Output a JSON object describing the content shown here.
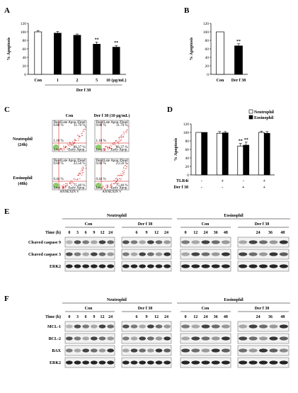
{
  "panels": {
    "a": {
      "letter": "A",
      "chart_data": {
        "type": "bar",
        "ylabel": "% Apoptosis",
        "ylim": [
          0,
          120
        ],
        "yticks": [
          0,
          20,
          40,
          60,
          80,
          100,
          120
        ],
        "categories": [
          "Con",
          "1",
          "2",
          "5",
          "10 (µg/mL)"
        ],
        "values": [
          100,
          97,
          92,
          71,
          64
        ],
        "errors": [
          3,
          4,
          3,
          5,
          4
        ],
        "fills": [
          "#ffffff",
          "#000000",
          "#000000",
          "#000000",
          "#000000"
        ],
        "annotations": [
          "",
          "",
          "",
          "**",
          "**"
        ],
        "group_label": "Der f 38"
      }
    },
    "b": {
      "letter": "B",
      "chart_data": {
        "type": "bar",
        "ylabel": "% Apoptosis",
        "ylim": [
          0,
          120
        ],
        "yticks": [
          0,
          20,
          40,
          60,
          80,
          100,
          120
        ],
        "categories": [
          "Con",
          "Der f 38"
        ],
        "values": [
          100,
          67
        ],
        "errors": [
          0,
          5
        ],
        "fills": [
          "#ffffff",
          "#000000"
        ],
        "annotations": [
          "",
          "**"
        ]
      }
    },
    "c": {
      "letter": "C",
      "col_labels": [
        "Con",
        "Der f 38 (10 µg/mL)"
      ],
      "rows": [
        {
          "label": "Neutrophil",
          "sublabel": "(24h)",
          "quad_pcts": [
            [
              "0.80 %",
              "11.70 %"
            ],
            [
              "1.10 %",
              "86.37 %"
            ]
          ]
        },
        {
          "label": "Eosinophil",
          "sublabel": "(48h)",
          "quad_pcts": [
            [
              "0.60 %",
              "23.56 %"
            ],
            [
              "0.44 %",
              "75.40 %"
            ]
          ]
        }
      ],
      "quad_labels": {
        "tl": "Dead",
        "tr": "Late Apop./Dead",
        "bl": "Live",
        "br": "Early Apop."
      },
      "xlabel": "ANNEXIN V",
      "ylabel": "7-AAD"
    },
    "d": {
      "letter": "D",
      "chart_data": {
        "type": "bar",
        "ylabel": "% Apoptosis",
        "ylim": [
          0,
          120
        ],
        "yticks": [
          0,
          20,
          40,
          60,
          80,
          100,
          120
        ],
        "series": [
          {
            "name": "Neutrophil",
            "values": [
              100,
              98,
              68,
              100
            ],
            "errors": [
              0,
              4,
              6,
              3
            ],
            "fill": "#ffffff"
          },
          {
            "name": "Eosinophil",
            "values": [
              100,
              99,
              70,
              98
            ],
            "errors": [
              0,
              3,
              7,
              4
            ],
            "fill": "#000000"
          }
        ],
        "annotations": [
          "",
          "",
          "**",
          ""
        ],
        "condition_rows": [
          {
            "label": "TLR4i",
            "values": [
              "-",
              "+",
              "-",
              "+"
            ]
          },
          {
            "label": "Der f 38",
            "values": [
              "-",
              "-",
              "+",
              "+"
            ]
          }
        ],
        "legend_position": "top-right"
      }
    },
    "e": {
      "letter": "E",
      "cell_types": [
        "Neutrophil",
        "Eosinophil"
      ],
      "treatments": [
        "Con",
        "Der f 38"
      ],
      "time_label": "Time (h)",
      "neutrophil_times": [
        "0",
        "3",
        "6",
        "9",
        "12",
        "24"
      ],
      "neutrophil_times_der": [
        "6",
        "9",
        "12",
        "24"
      ],
      "eosinophil_times": [
        "0",
        "12",
        "24",
        "36",
        "48"
      ],
      "eosinophil_times_der": [
        "24",
        "36",
        "48"
      ],
      "rows": [
        "Cleaved caspase 9",
        "Cleaved caspase 3",
        "ERK2"
      ]
    },
    "f": {
      "letter": "F",
      "cell_types": [
        "Neutrophil",
        "Eosinophil"
      ],
      "treatments": [
        "Con",
        "Der f 38"
      ],
      "time_label": "Time (h)",
      "neutrophil_times": [
        "0",
        "3",
        "6",
        "9",
        "12",
        "24"
      ],
      "neutrophil_times_der": [
        "6",
        "9",
        "12",
        "24"
      ],
      "eosinophil_times": [
        "0",
        "12",
        "24",
        "36",
        "48"
      ],
      "eosinophil_times_der": [
        "24",
        "36",
        "48"
      ],
      "rows": [
        "MCL-1",
        "BCL-2",
        "BAX",
        "ERK2"
      ]
    }
  }
}
